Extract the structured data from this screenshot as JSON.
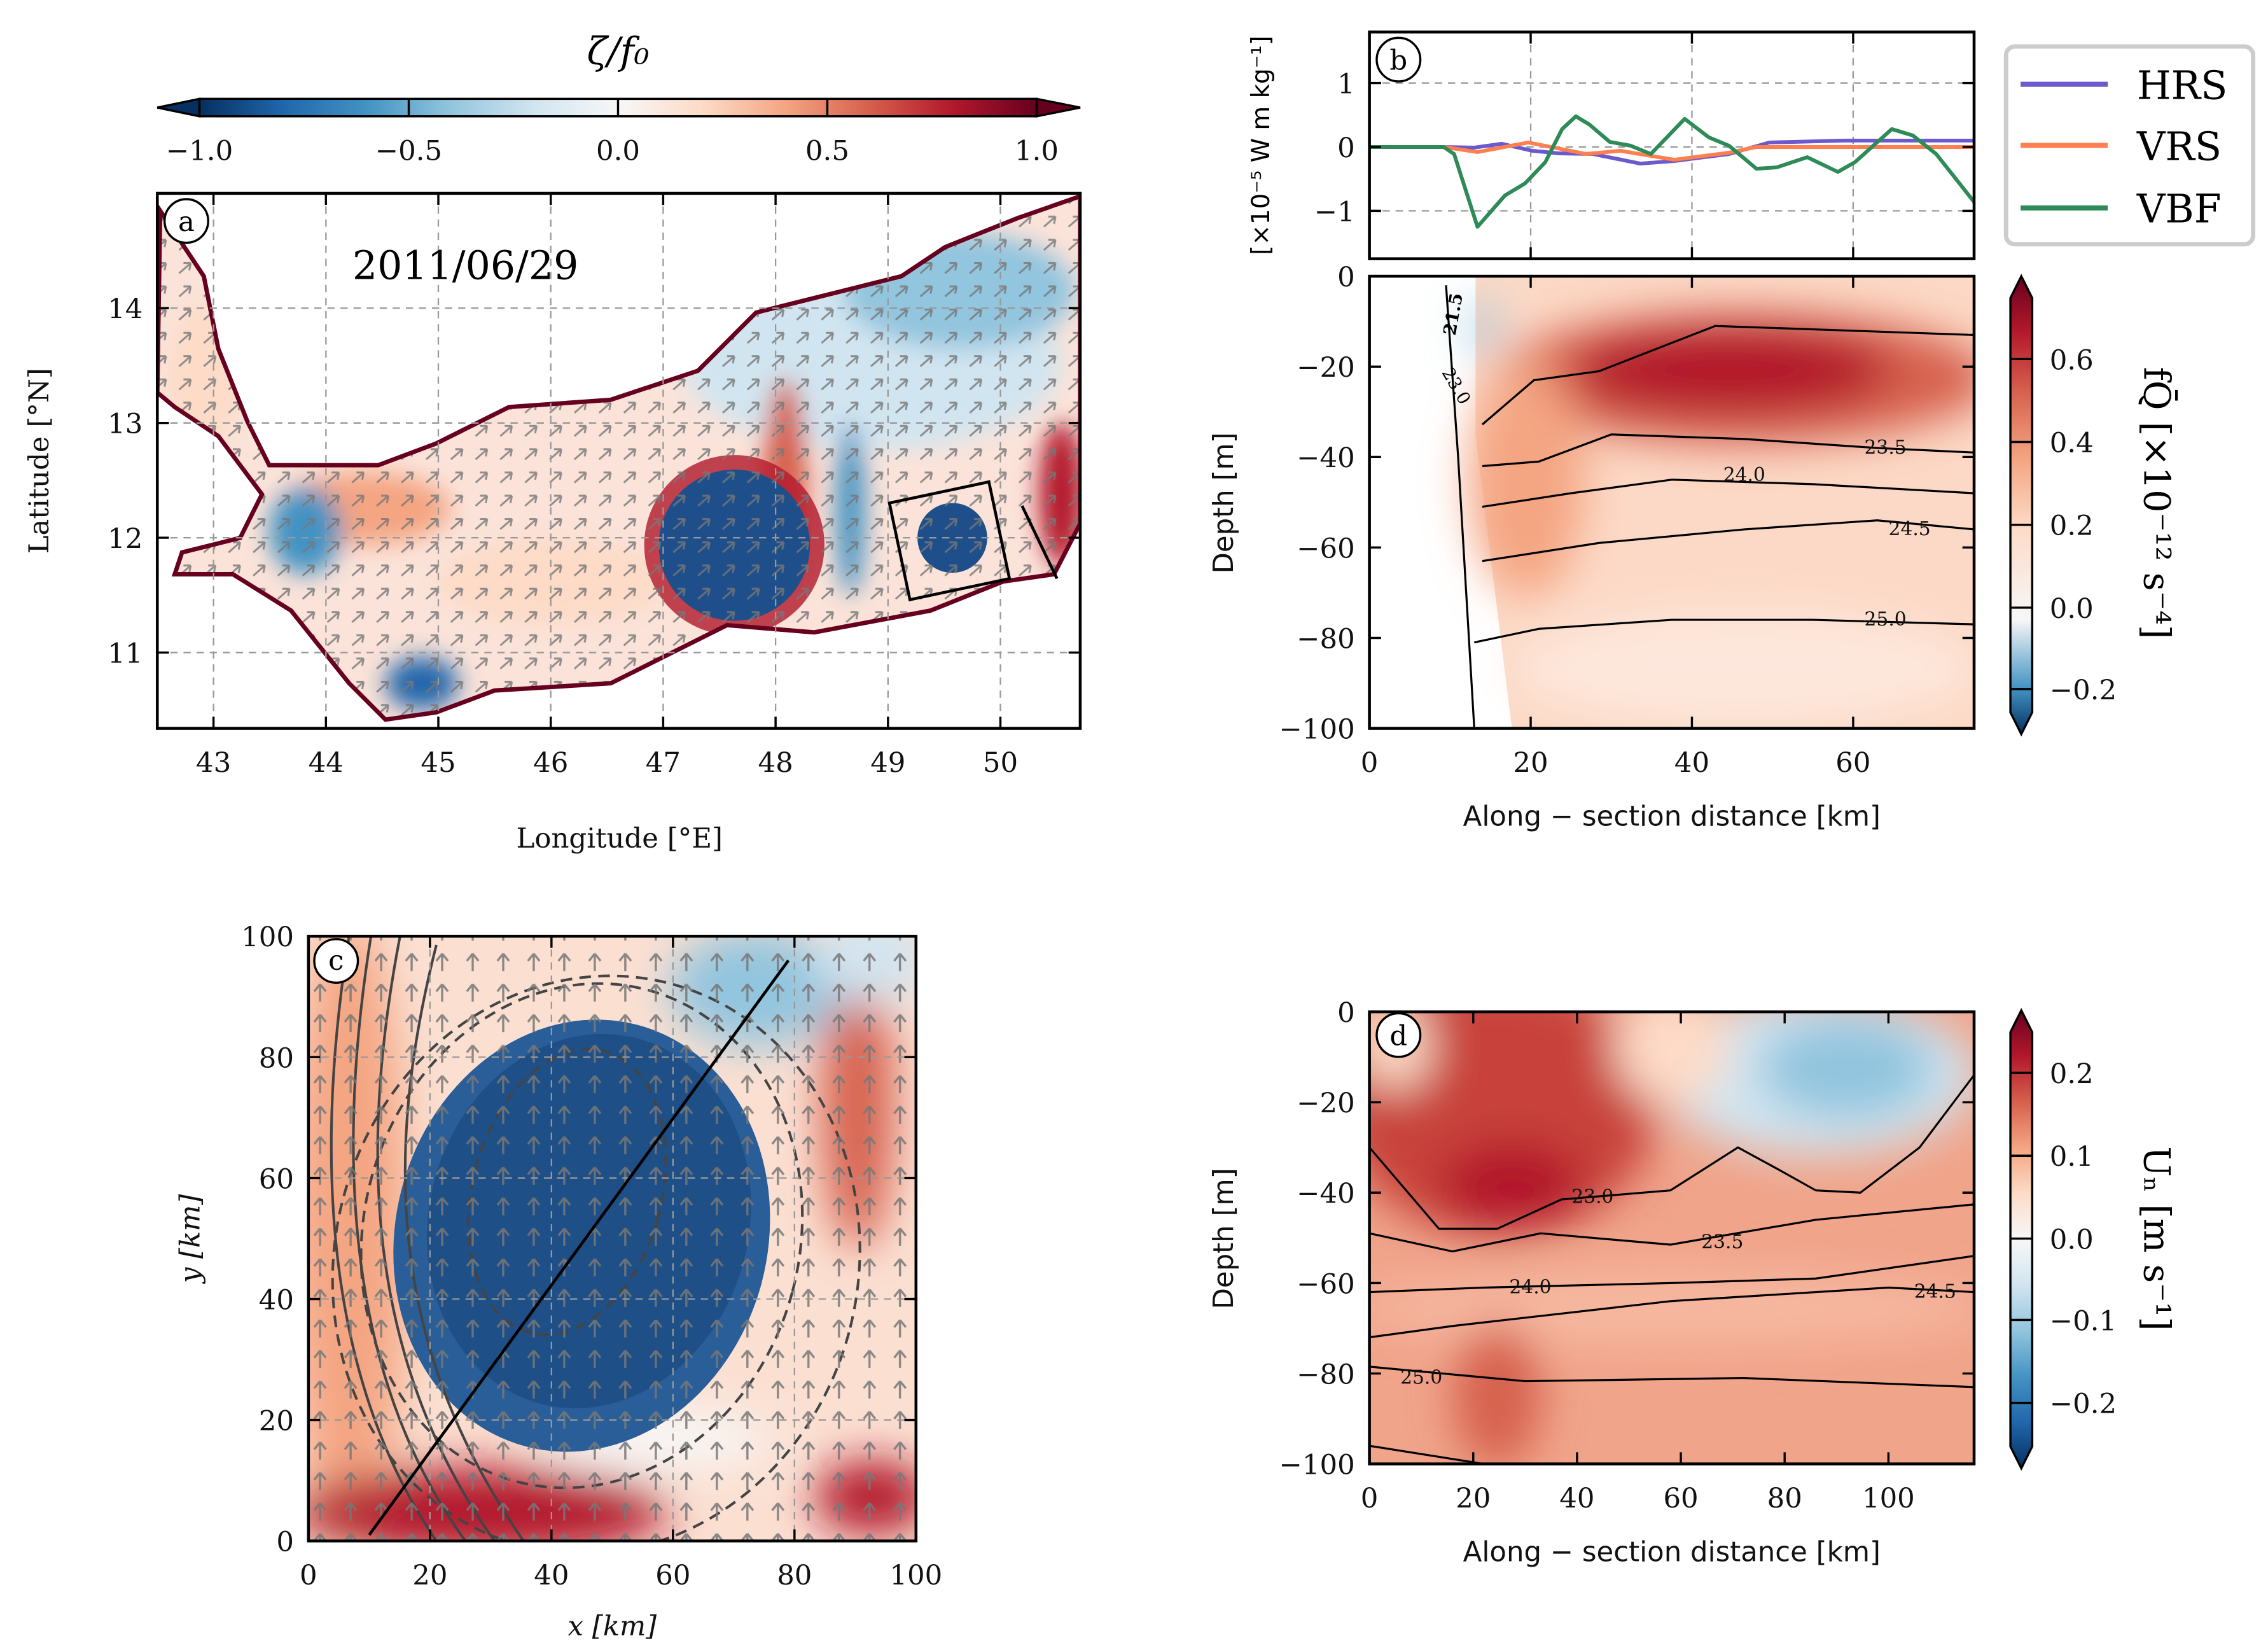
{
  "colors": {
    "rdbu": [
      "#053061",
      "#2166ac",
      "#4393c3",
      "#92c5de",
      "#d1e5f0",
      "#f7f7f7",
      "#fddbc7",
      "#f4a582",
      "#d6604d",
      "#b2182b",
      "#67001f"
    ],
    "HRS": "#6a5acd",
    "VRS": "#ff7f50",
    "VBF": "#2e8b57"
  },
  "panel_a": {
    "letter": "a",
    "date": "2011/06/29",
    "colorbar_title": "ζ/f₀",
    "colorbar_ticks": [
      "−1.0",
      "−0.5",
      "0.0",
      "0.5",
      "1.0"
    ],
    "xlabel": "Longitude [°E]",
    "ylabel": "Latitude [°N]"
  },
  "panel_b": {
    "letter": "b",
    "top_ylabel": "[×10⁻⁵ W m kg⁻¹]",
    "xlabel": "Along − section distance [km]",
    "ylabel": "Depth [m]",
    "colorbar_label": "fQ̄ [×10⁻¹² s⁻⁴]",
    "colorbar_ticks": [
      "0.6",
      "0.4",
      "0.2",
      "0.0",
      "−0.2"
    ],
    "legend": [
      "HRS",
      "VRS",
      "VBF"
    ],
    "wall_labels": [
      "21.5",
      "23.0"
    ]
  },
  "panel_c": {
    "letter": "c",
    "xlabel": "x [km]",
    "ylabel": "y [km]"
  },
  "panel_d": {
    "letter": "d",
    "xlabel": "Along − section distance [km]",
    "ylabel": "Depth [m]",
    "colorbar_label": "Uₙ [m s⁻¹]",
    "colorbar_ticks": [
      "0.2",
      "0.1",
      "0.0",
      "−0.1",
      "−0.2"
    ]
  },
  "chart_data": [
    {
      "panel": "a",
      "type": "heatmap",
      "title": "2011/06/29",
      "xlabel": "Longitude [°E]",
      "ylabel": "Latitude [°N]",
      "xlim": [
        42.5,
        50.7
      ],
      "ylim": [
        10.35,
        15.0
      ],
      "xticks": [
        {
          "v": 43,
          "t": "43"
        },
        {
          "v": 44,
          "t": "44"
        },
        {
          "v": 45,
          "t": "45"
        },
        {
          "v": 46,
          "t": "46"
        },
        {
          "v": 47,
          "t": "47"
        },
        {
          "v": 48,
          "t": "48"
        },
        {
          "v": 49,
          "t": "49"
        },
        {
          "v": 50,
          "t": "50"
        }
      ],
      "yticks": [
        {
          "v": 11,
          "t": "11"
        },
        {
          "v": 12,
          "t": "12"
        },
        {
          "v": 13,
          "t": "13"
        },
        {
          "v": 14,
          "t": "14"
        }
      ],
      "colorbar_range": [
        -1.0,
        1.0
      ],
      "grid": true
    },
    {
      "panel": "b-top",
      "type": "line",
      "xlim": [
        0,
        75
      ],
      "ylim": [
        -1.75,
        1.8
      ],
      "yticks": [
        {
          "v": 1,
          "t": "1"
        },
        {
          "v": 0,
          "t": "0"
        },
        {
          "v": -1,
          "t": "−1"
        }
      ],
      "grid": true,
      "legend_position": "right-outside",
      "series": [
        {
          "name": "HRS",
          "x": [
            0,
            9,
            13,
            16.4,
            20.2,
            23.5,
            27.7,
            33.6,
            37.8,
            44.6,
            49.6,
            58.9,
            75
          ],
          "y": [
            0,
            0,
            -0.01,
            0.05,
            -0.06,
            -0.1,
            -0.11,
            -0.26,
            -0.22,
            -0.11,
            0.07,
            0.1,
            0.1
          ]
        },
        {
          "name": "VRS",
          "x": [
            0,
            9.2,
            13.4,
            19.7,
            26.9,
            31.1,
            37.8,
            44.6,
            48,
            75
          ],
          "y": [
            0,
            0,
            -0.08,
            0.07,
            -0.11,
            -0.06,
            -0.2,
            -0.09,
            0,
            0
          ]
        },
        {
          "name": "VBF",
          "x": [
            0,
            9.2,
            10.5,
            13.4,
            16.8,
            19.3,
            21.8,
            23.9,
            25.6,
            27.3,
            29.8,
            32.4,
            34.9,
            39.1,
            42.1,
            44.6,
            48,
            50.5,
            54.3,
            58.1,
            60.2,
            64.8,
            67.4,
            70.3,
            75
          ],
          "y": [
            0,
            0,
            -0.11,
            -1.25,
            -0.76,
            -0.57,
            -0.24,
            0.28,
            0.48,
            0.35,
            0.08,
            0.02,
            -0.11,
            0.44,
            0.15,
            0.02,
            -0.34,
            -0.32,
            -0.16,
            -0.39,
            -0.24,
            0.28,
            0.18,
            -0.11,
            -0.86
          ]
        }
      ]
    },
    {
      "panel": "b-bottom",
      "type": "heatmap",
      "xlabel": "Along − section distance [km]",
      "ylabel": "Depth [m]",
      "xlim": [
        0,
        75
      ],
      "ylim": [
        -100,
        0
      ],
      "xticks": [
        {
          "v": 0,
          "t": "0"
        },
        {
          "v": 20,
          "t": "20"
        },
        {
          "v": 40,
          "t": "40"
        },
        {
          "v": 60,
          "t": "60"
        }
      ],
      "yticks": [
        {
          "v": 0,
          "t": "0"
        },
        {
          "v": -20,
          "t": "−20"
        },
        {
          "v": -40,
          "t": "−40"
        },
        {
          "v": -60,
          "t": "−60"
        },
        {
          "v": -80,
          "t": "−80"
        },
        {
          "v": -100,
          "t": "−100"
        }
      ],
      "colorbar_range": [
        -0.3,
        0.75
      ],
      "contours": [
        {
          "label": "",
          "x": [
            14,
            20.4,
            28.5,
            42.9,
            59,
            75
          ],
          "y": [
            -32.8,
            -23,
            -21,
            -11,
            -12,
            -13
          ]
        },
        {
          "label": "23.5",
          "label_at": [
            64,
            -38
          ],
          "x": [
            14,
            21,
            30,
            46.5,
            63,
            75
          ],
          "y": [
            -42,
            -41,
            -35,
            -36,
            -38,
            -39
          ]
        },
        {
          "label": "24.0",
          "label_at": [
            46.5,
            -44
          ],
          "x": [
            14,
            25,
            37.5,
            55,
            75
          ],
          "y": [
            -51,
            -48,
            -45,
            -46,
            -48
          ]
        },
        {
          "label": "24.5",
          "label_at": [
            67,
            -56
          ],
          "x": [
            14,
            28.5,
            46.5,
            63,
            75
          ],
          "y": [
            -63,
            -59,
            -56,
            -54,
            -56
          ]
        },
        {
          "label": "25.0",
          "label_at": [
            64,
            -76
          ],
          "x": [
            13,
            21,
            37.5,
            55,
            75
          ],
          "y": [
            -81,
            -78,
            -76,
            -76,
            -77
          ]
        },
        {
          "label": "",
          "x": [
            9.5,
            11,
            12,
            13
          ],
          "y": [
            -2,
            -40,
            -70,
            -100
          ]
        }
      ]
    },
    {
      "panel": "c",
      "type": "heatmap",
      "xlabel": "x [km]",
      "ylabel": "y [km]",
      "xlim": [
        0,
        100
      ],
      "ylim": [
        0,
        100
      ],
      "xticks": [
        {
          "v": 0,
          "t": "0"
        },
        {
          "v": 20,
          "t": "20"
        },
        {
          "v": 40,
          "t": "40"
        },
        {
          "v": 60,
          "t": "60"
        },
        {
          "v": 80,
          "t": "80"
        },
        {
          "v": 100,
          "t": "100"
        }
      ],
      "yticks": [
        {
          "v": 0,
          "t": "0"
        },
        {
          "v": 20,
          "t": "20"
        },
        {
          "v": 40,
          "t": "40"
        },
        {
          "v": 60,
          "t": "60"
        },
        {
          "v": 80,
          "t": "80"
        },
        {
          "v": 100,
          "t": "100"
        }
      ],
      "section_line": {
        "x": [
          10,
          79
        ],
        "y": [
          1,
          96
        ]
      }
    },
    {
      "panel": "d",
      "type": "heatmap",
      "xlabel": "Along − section distance [km]",
      "ylabel": "Depth [m]",
      "xlim": [
        0,
        116.5
      ],
      "ylim": [
        -100,
        0
      ],
      "xticks": [
        {
          "v": 0,
          "t": "0"
        },
        {
          "v": 20,
          "t": "20"
        },
        {
          "v": 40,
          "t": "40"
        },
        {
          "v": 60,
          "t": "60"
        },
        {
          "v": 80,
          "t": "80"
        },
        {
          "v": 100,
          "t": "100"
        }
      ],
      "yticks": [
        {
          "v": 0,
          "t": "0"
        },
        {
          "v": -20,
          "t": "−20"
        },
        {
          "v": -40,
          "t": "−40"
        },
        {
          "v": -60,
          "t": "−60"
        },
        {
          "v": -80,
          "t": "−80"
        },
        {
          "v": -100,
          "t": "−100"
        }
      ],
      "colorbar_range": [
        -0.25,
        0.25
      ],
      "contours": [
        {
          "label": "23.0",
          "label_at": [
            43,
            -41
          ],
          "x": [
            0,
            13.4,
            24.6,
            37,
            58,
            71,
            79,
            86,
            94.6,
            106,
            116.5
          ],
          "y": [
            -30,
            -48,
            -48,
            -41.5,
            -39.5,
            -30,
            -35,
            -39.5,
            -40,
            -30,
            -14
          ]
        },
        {
          "label": "23.5",
          "label_at": [
            68,
            -51
          ],
          "x": [
            0,
            16,
            33,
            58,
            86,
            116.5
          ],
          "y": [
            -49,
            -53,
            -49,
            -51.5,
            -46,
            -42.6
          ]
        },
        {
          "label": "24.0",
          "label_at": [
            31,
            -61
          ],
          "x": [
            0,
            22,
            58,
            86,
            116.5
          ],
          "y": [
            -62,
            -61,
            -60,
            -59,
            -54
          ]
        },
        {
          "label": "24.5",
          "label_at": [
            109,
            -62
          ],
          "x": [
            0,
            16,
            58,
            100,
            116.5
          ],
          "y": [
            -72,
            -69.5,
            -64,
            -61,
            -62
          ]
        },
        {
          "label": "25.0",
          "label_at": [
            10,
            -81
          ],
          "x": [
            0,
            30,
            72,
            116.5
          ],
          "y": [
            -78.5,
            -81.7,
            -81,
            -83
          ]
        },
        {
          "label": "",
          "x": [
            0,
            22
          ],
          "y": [
            -96,
            -100
          ]
        }
      ]
    }
  ]
}
